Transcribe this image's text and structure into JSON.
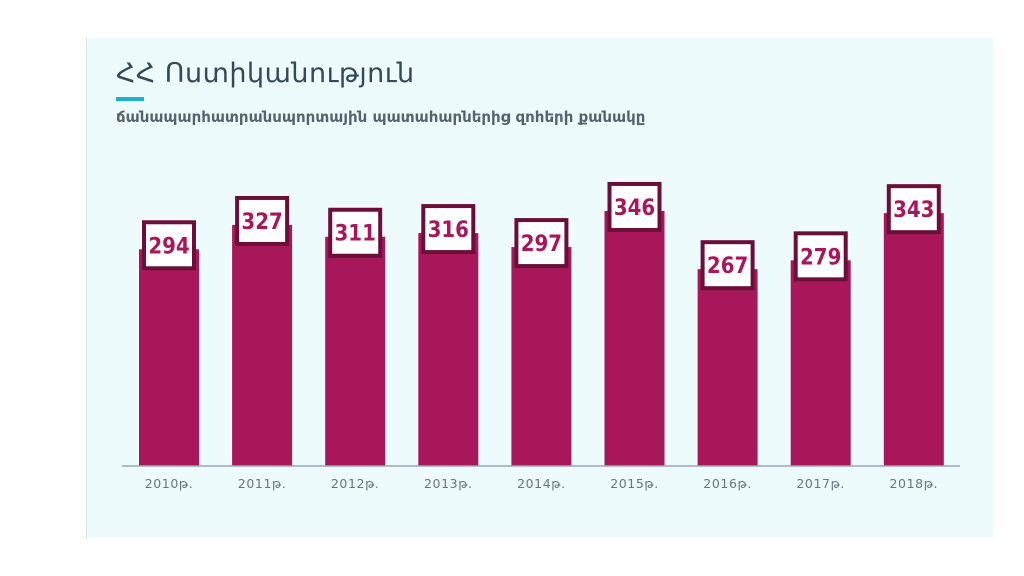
{
  "colors": {
    "bar": "#a8175a",
    "label_border": "#6b0f3a",
    "label_text": "#a8175a",
    "axis": "#9aa6b4",
    "tick_text": "#6a7480",
    "panel": "#eefbfd",
    "accent": "#22aed0"
  },
  "chart_data": {
    "type": "bar",
    "title": "ՀՀ Ոստիկանություն",
    "subtitle": "ճանապարհատրանսպորտային պատահարներից զոհերի քանակը",
    "categories": [
      "2010թ.",
      "2011թ.",
      "2012թ.",
      "2013թ.",
      "2014թ.",
      "2015թ.",
      "2016թ.",
      "2017թ.",
      "2018թ."
    ],
    "values": [
      294,
      327,
      311,
      316,
      297,
      346,
      267,
      279,
      343
    ],
    "xlabel": "",
    "ylabel": "",
    "ylim": [
      0,
      350
    ],
    "grid": false,
    "legend": "none",
    "data_labels": true
  }
}
